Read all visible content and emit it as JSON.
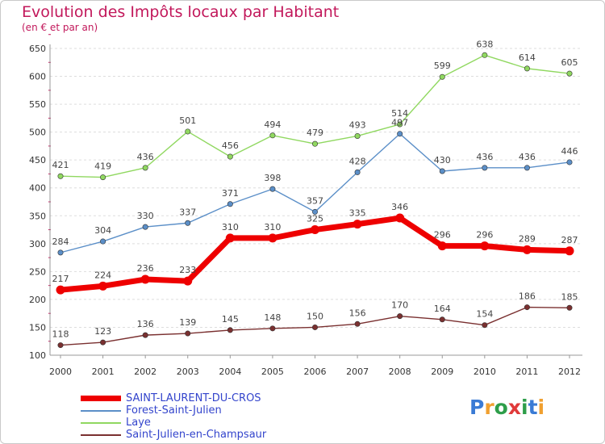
{
  "title": "Evolution des Impôts locaux par Habitant",
  "subtitle": "(en € et par an)",
  "brand": {
    "letters": [
      "P",
      "r",
      "o",
      "x",
      "i",
      "t",
      "i"
    ],
    "colors": [
      "#3a7bd5",
      "#f0a030",
      "#2e9e4a",
      "#e03a3a",
      "#2e9e4a",
      "#3a7bd5",
      "#f0a030"
    ]
  },
  "chart_data": {
    "type": "line",
    "title": "Evolution des Impôts locaux par Habitant",
    "subtitle": "(en € et par an)",
    "xlabel": "",
    "ylabel": "",
    "categories": [
      "2000",
      "2001",
      "2002",
      "2003",
      "2004",
      "2005",
      "2006",
      "2007",
      "2008",
      "2009",
      "2010",
      "2011",
      "2012"
    ],
    "ylim": [
      100,
      650
    ],
    "yticks": [
      100,
      150,
      200,
      250,
      300,
      350,
      400,
      450,
      500,
      550,
      600,
      650
    ],
    "grid": "horizontal dashed",
    "legend_position": "bottom-left",
    "series": [
      {
        "name": "SAINT-LAURENT-DU-CROS",
        "color": "#ee0000",
        "values": [
          217,
          224,
          236,
          233,
          310,
          310,
          325,
          335,
          346,
          296,
          296,
          289,
          287
        ],
        "emphasis": true
      },
      {
        "name": "Forest-Saint-Julien",
        "color": "#5b8fc8",
        "values": [
          284,
          304,
          330,
          337,
          371,
          398,
          357,
          428,
          497,
          430,
          436,
          436,
          446
        ]
      },
      {
        "name": "Laye",
        "color": "#90d860",
        "values": [
          421,
          419,
          436,
          501,
          456,
          494,
          479,
          493,
          514,
          599,
          638,
          614,
          605
        ]
      },
      {
        "name": "Saint-Julien-en-Champsaur",
        "color": "#7a3030",
        "values": [
          118,
          123,
          136,
          139,
          145,
          148,
          150,
          156,
          170,
          164,
          154,
          186,
          185
        ]
      }
    ]
  }
}
